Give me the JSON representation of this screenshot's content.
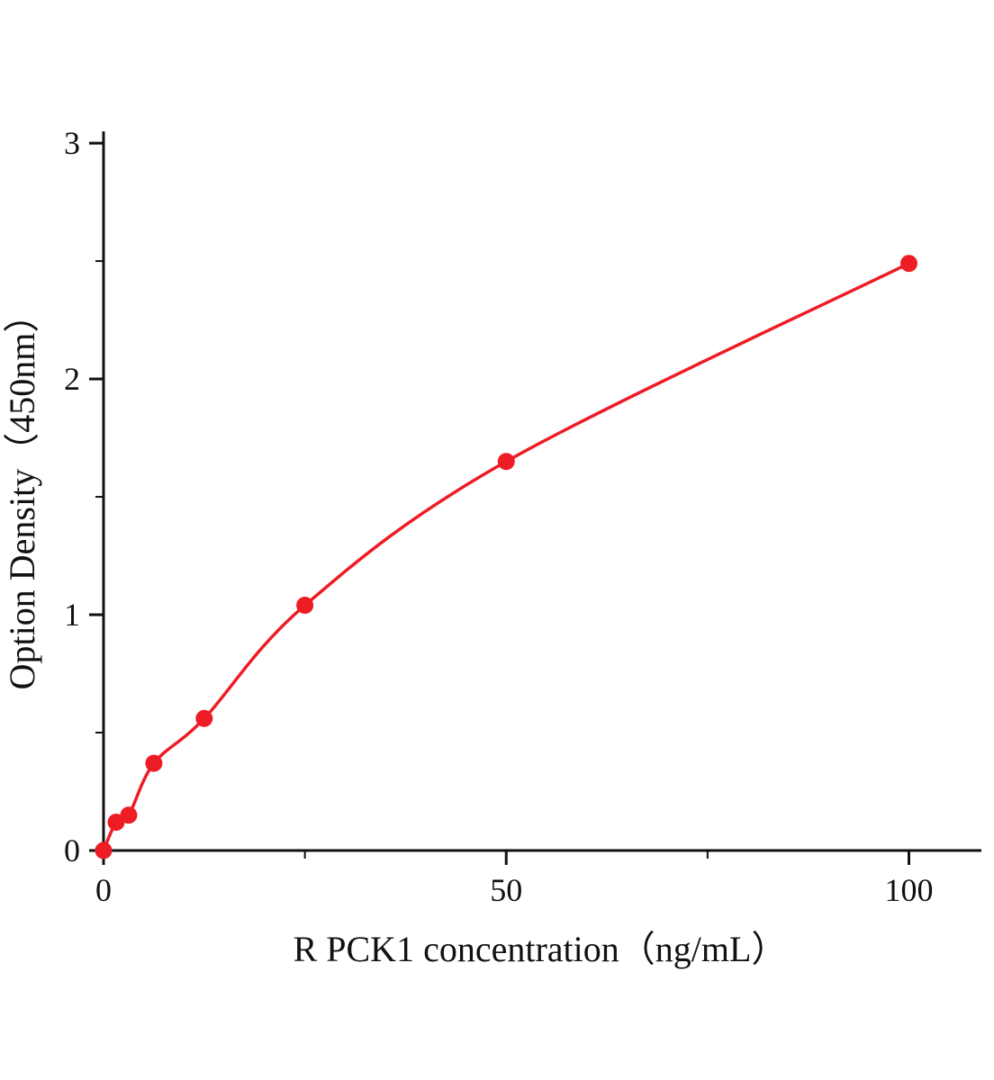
{
  "chart_data": {
    "type": "line",
    "title": "",
    "xlabel": "R PCK1  concentration（ng/mL）",
    "ylabel": "Option Density（450nm）",
    "x": [
      0,
      1.5625,
      3.125,
      6.25,
      12.5,
      25,
      50,
      100
    ],
    "y": [
      0,
      0.12,
      0.15,
      0.37,
      0.56,
      1.04,
      1.65,
      2.49
    ],
    "xlim": [
      0,
      109
    ],
    "ylim": [
      0,
      3.05
    ],
    "x_ticks": {
      "major": [
        0,
        50,
        100
      ],
      "minor": [
        25,
        75
      ]
    },
    "y_ticks": {
      "major": [
        0,
        1,
        2,
        3
      ],
      "minor": [
        0.5,
        1.5,
        2.5
      ]
    },
    "x_tick_labels": [
      "0",
      "50",
      "100"
    ],
    "y_tick_labels": [
      "0",
      "1",
      "2",
      "3"
    ],
    "line_color": "#ee1c25",
    "point_color": "#ee1c25",
    "axis_color": "#111111",
    "grid": false,
    "legend": null
  }
}
